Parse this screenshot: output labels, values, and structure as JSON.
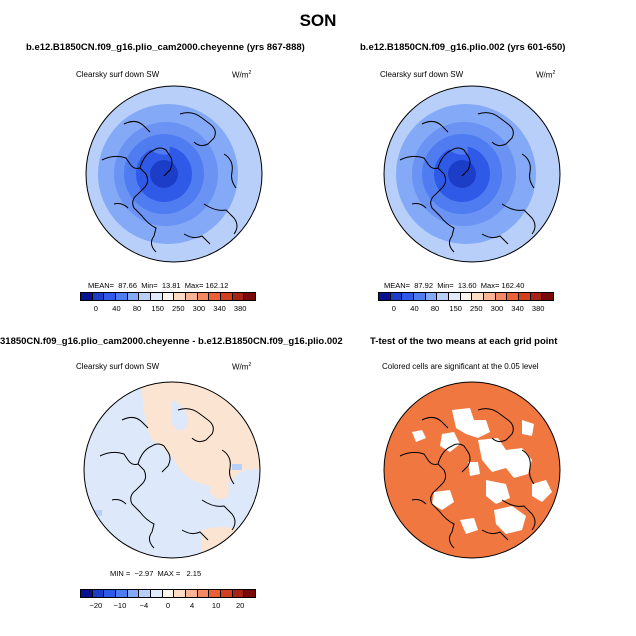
{
  "season": "SON",
  "panels": [
    {
      "title": "b.e12.B1850CN.f09_g16.plio_cam2000.cheyenne (yrs 867-888)",
      "subtitle": "Clearsky surf down SW",
      "units": "W/m",
      "units_sup": "2",
      "stats": {
        "mean_label": "MEAN=",
        "mean": "87.66",
        "min_label": "Min=",
        "min": "13.81",
        "max_label": "Max=",
        "max": "162.12"
      },
      "colorbar": {
        "labels": [
          "0",
          "40",
          "80",
          "150",
          "250",
          "300",
          "340",
          "380"
        ],
        "colors": [
          "#08118f",
          "#1c3dc8",
          "#2f5ae8",
          "#4f7df1",
          "#84a9f6",
          "#b8cffa",
          "#e1ebfd",
          "#fdf6ee",
          "#fcdcc4",
          "#f9b495",
          "#f48864",
          "#ec6038",
          "#d3401f",
          "#a82315",
          "#7a0a0a"
        ]
      }
    },
    {
      "title": "b.e12.B1850CN.f09_g16.plio.002 (yrs 601-650)",
      "subtitle": "Clearsky surf down SW",
      "units": "W/m",
      "units_sup": "2",
      "stats": {
        "mean_label": "MEAN=",
        "mean": "87.92",
        "min_label": "Min=",
        "min": "13.60",
        "max_label": "Max=",
        "max": "162.40"
      },
      "colorbar": {
        "labels": [
          "0",
          "40",
          "80",
          "150",
          "250",
          "300",
          "340",
          "380"
        ],
        "colors": [
          "#08118f",
          "#1c3dc8",
          "#2f5ae8",
          "#4f7df1",
          "#84a9f6",
          "#b8cffa",
          "#e1ebfd",
          "#fdf6ee",
          "#fcdcc4",
          "#f9b495",
          "#f48864",
          "#ec6038",
          "#d3401f",
          "#a82315",
          "#7a0a0a"
        ]
      }
    },
    {
      "title": "31850CN.f09_g16.plio_cam2000.cheyenne - b.e12.B1850CN.f09_g16.plio.002",
      "subtitle": "Clearsky surf down SW",
      "units": "W/m",
      "units_sup": "2",
      "stats": {
        "min_label": "MIN =",
        "min": "−2.97",
        "max_label": "MAX =",
        "max": "2.15"
      },
      "colorbar": {
        "labels": [
          "−20",
          "−10",
          "−4",
          "0",
          "4",
          "10",
          "20"
        ],
        "colors": [
          "#08118f",
          "#1c3dc8",
          "#2f5ae8",
          "#4f7df1",
          "#84a9f6",
          "#b8cffa",
          "#e1ebfd",
          "#fdf6ee",
          "#fcdcc4",
          "#f9b495",
          "#f48864",
          "#ec6038",
          "#d3401f",
          "#a82315",
          "#7a0a0a"
        ]
      }
    },
    {
      "title": "T-test of the two means at each grid point",
      "subtitle": "Colored cells are significant at the 0.05 level",
      "fill_color": "#f07840"
    }
  ]
}
